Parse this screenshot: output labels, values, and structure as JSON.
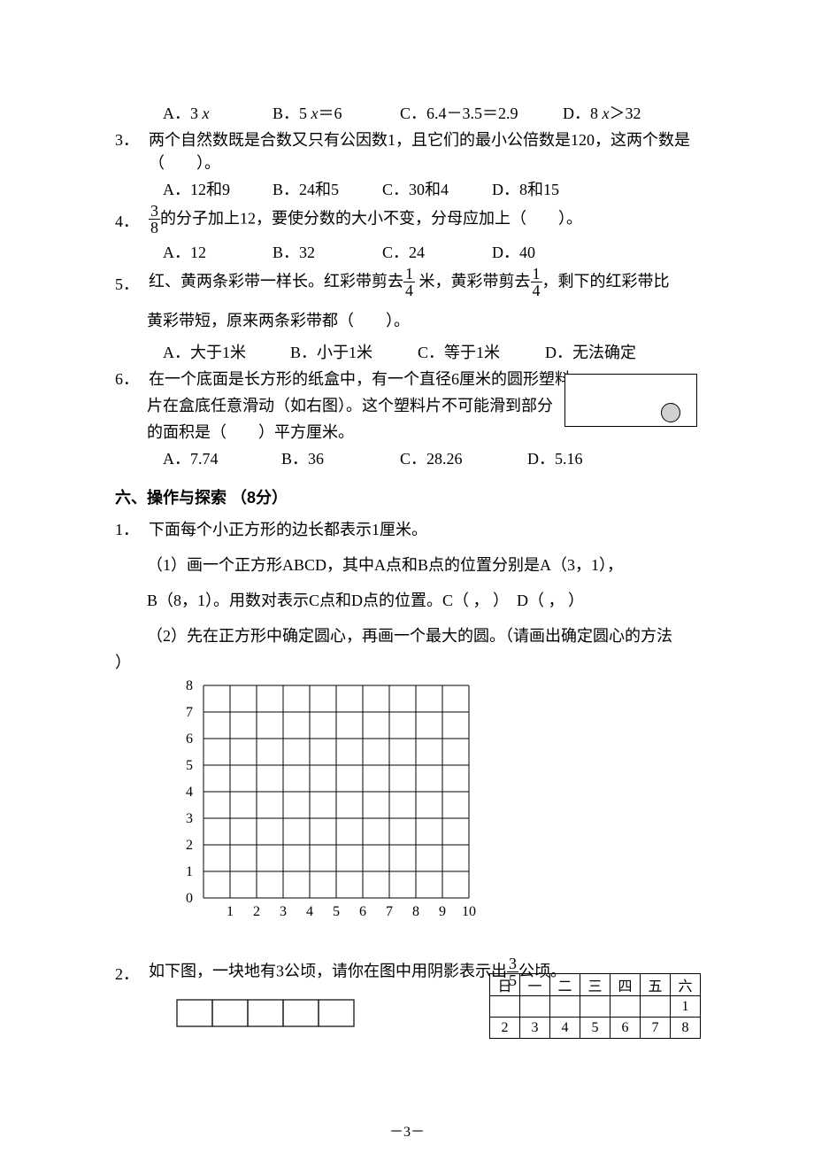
{
  "q2_options": {
    "a": "A．3 ",
    "a_var": "x",
    "b": "B．5 ",
    "b_var": "x",
    "b_tail": "＝6",
    "c": "C．6.4－3.5＝2.9",
    "d": "D．8 ",
    "d_var": "x",
    "d_tail": "＞32"
  },
  "q3": {
    "num": "3．",
    "text": "两个自然数既是合数又只有公因数1，且它们的最小公倍数是120，这两个数是（　　）。",
    "a": "A．12和9",
    "b": "B．24和5",
    "c": "C．30和4",
    "d": "D．8和15"
  },
  "q4": {
    "num": "4．",
    "frac_num": "3",
    "frac_den": "8",
    "text_tail": "的分子加上12，要使分数的大小不变，分母应加上（　　）。",
    "a": "A．12",
    "b": "B．32",
    "c": "C．24",
    "d": "D．40"
  },
  "q5": {
    "num": "5．",
    "text_1a": "红、黄两条彩带一样长。红彩带剪去",
    "f1_num": "1",
    "f1_den": "4",
    "text_1b": " 米，黄彩带剪去",
    "f2_num": "1",
    "f2_den": "4",
    "text_1c": "，剩下的红彩带比",
    "text_2": "黄彩带短，原来两条彩带都（　　）。",
    "a": "A．大于1米",
    "b": "B．小于1米",
    "c": "C．等于1米",
    "d": "D．无法确定"
  },
  "q6": {
    "num": "6．",
    "l1": "在一个底面是长方形的纸盒中，有一个直径6厘米的圆形塑料",
    "l2": "片在盒底任意滑动（如右图）。这个塑料片不可能滑到部分",
    "l3": "的面积是（　　）平方厘米。",
    "a": "A．7.74",
    "b": "B．36",
    "c": "C．28.26",
    "d": "D．5.16"
  },
  "sec6": {
    "head": "六、操作与探索 （8分）",
    "q1": {
      "num": "1．",
      "intro": "下面每个小正方形的边长都表示1厘米。",
      "p1": "（1）画一个正方形ABCD，其中A点和B点的位置分别是A（3，1），",
      "p1b": "B（8，1）。用数对表示C点和D点的位置。C（ ， ）　D（ ， ）",
      "p2": "（2）先在正方形中确定圆心，再画一个最大的圆。（请画出确定圆心的方法",
      "p2_tail": "）"
    },
    "grid": {
      "cell": 30,
      "x_labels": [
        "0",
        "1",
        "2",
        "3",
        "4",
        "5",
        "6",
        "7",
        "8",
        "9",
        "10"
      ],
      "y_labels": [
        "0",
        "1",
        "2",
        "3",
        "4",
        "5",
        "6",
        "7",
        "8"
      ],
      "x_count": 10,
      "y_count": 8,
      "stroke": "#000000",
      "stroke_w": 1,
      "font_size": 16
    },
    "q2": {
      "num": "2．",
      "text_a": "如下图，一块地有3公顷，请你在图中用阴影表示出",
      "f_num": "3",
      "f_den": "5",
      "text_b": "公顷。",
      "boxes": {
        "count": 5,
        "w": 40,
        "h": 30,
        "stroke": "#000000"
      }
    }
  },
  "calendar": {
    "head": [
      "日",
      "一",
      "二",
      "三",
      "四",
      "五",
      "六"
    ],
    "r1": [
      "",
      "",
      "",
      "",
      "",
      "",
      "1"
    ],
    "r2": [
      "2",
      "3",
      "4",
      "5",
      "6",
      "7",
      "8"
    ]
  },
  "page_num": "－3－",
  "spacing": {
    "opt_gap_s": 40,
    "opt_gap_m": 46,
    "opt_gap_l": 50
  }
}
